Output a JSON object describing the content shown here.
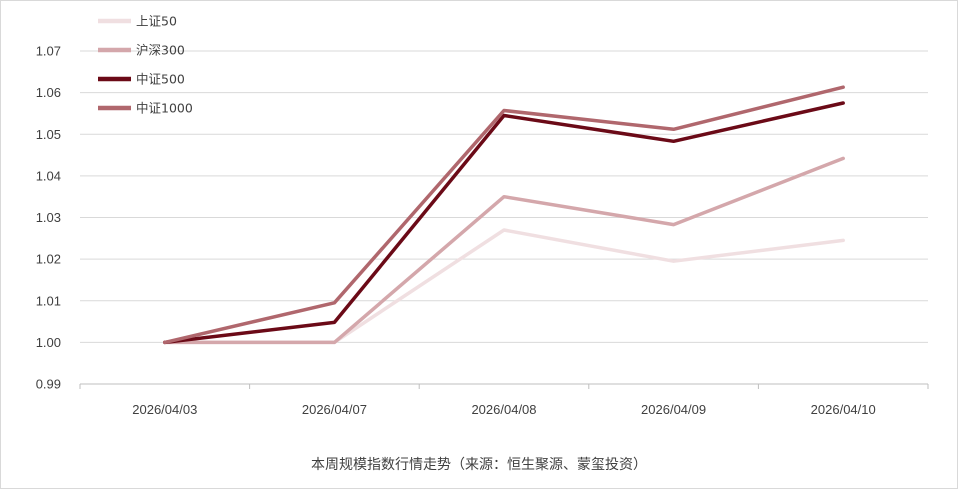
{
  "caption": "本周规模指数行情走势（来源：恒生聚源、蒙玺投资）",
  "chart_data": {
    "type": "line",
    "title": "",
    "xlabel": "",
    "ylabel": "",
    "x": [
      "2026/04/03",
      "2026/04/07",
      "2026/04/08",
      "2026/04/09",
      "2026/04/10"
    ],
    "ylim": [
      0.99,
      1.07
    ],
    "yticks": [
      "0.99",
      "1.00",
      "1.01",
      "1.02",
      "1.03",
      "1.04",
      "1.05",
      "1.06",
      "1.07"
    ],
    "grid": true,
    "legend_position": "top-left",
    "series": [
      {
        "name": "上证50",
        "color": "#f0dfe1",
        "values": [
          1.0,
          1.0,
          1.027,
          1.0195,
          1.0245
        ]
      },
      {
        "name": "沪深300",
        "color": "#d4a7ab",
        "values": [
          1.0,
          1.0,
          1.035,
          1.0283,
          1.0442
        ]
      },
      {
        "name": "中证500",
        "color": "#6b0a17",
        "values": [
          1.0,
          1.0048,
          1.0545,
          1.0483,
          1.0575
        ]
      },
      {
        "name": "中证1000",
        "color": "#b0676d",
        "values": [
          1.0,
          1.0095,
          1.0557,
          1.0512,
          1.0613
        ]
      }
    ]
  }
}
